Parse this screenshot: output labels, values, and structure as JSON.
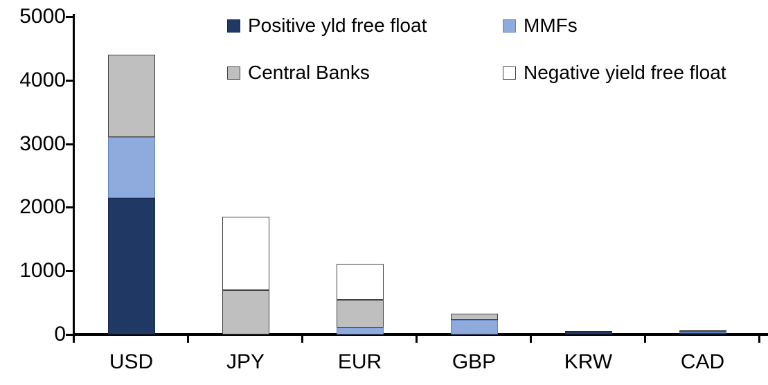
{
  "chart_data": {
    "type": "bar",
    "stacked": true,
    "title": "",
    "xlabel": "",
    "ylabel": "",
    "categories": [
      "USD",
      "JPY",
      "EUR",
      "GBP",
      "KRW",
      "CAD"
    ],
    "series": [
      {
        "name": "Positive yld free float",
        "color": "#1f3864",
        "border": "#17294a",
        "values": [
          2150,
          0,
          0,
          0,
          50,
          35
        ]
      },
      {
        "name": "MMFs",
        "color": "#8faadc",
        "border": "#5f83c0",
        "values": [
          950,
          0,
          110,
          230,
          0,
          10
        ]
      },
      {
        "name": "Central Banks",
        "color": "#bfbfbf",
        "border": "#404040",
        "values": [
          1300,
          700,
          440,
          100,
          0,
          25
        ]
      },
      {
        "name": "Negative yield free float",
        "color": "#ffffff",
        "border": "#404040",
        "values": [
          0,
          1150,
          560,
          0,
          0,
          0
        ]
      }
    ],
    "totals": {
      "USD": 4400,
      "JPY": 1850,
      "EUR": 1110,
      "GBP": 330,
      "KRW": 50,
      "CAD": 70
    },
    "ylim": [
      0,
      5000
    ],
    "ytick_interval": 1000,
    "ytick_labels": [
      "0",
      "1000",
      "2000",
      "3000",
      "4000",
      "5000"
    ],
    "grid": false,
    "legend_position": "top",
    "axis_color": "#000000"
  }
}
